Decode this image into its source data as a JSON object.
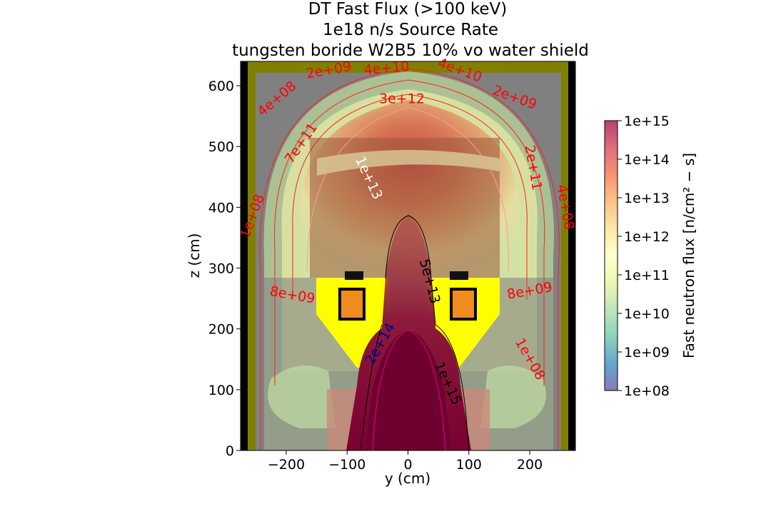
{
  "chart_data": {
    "type": "heatmap",
    "title_lines": [
      "DT Fast Flux (>100 keV)",
      "1e18 n/s Source Rate",
      "tungsten boride W2B5 10% vo water shield"
    ],
    "xlabel": "y (cm)",
    "ylabel": "z (cm)",
    "xlim": [
      -275,
      275
    ],
    "ylim": [
      0,
      640
    ],
    "xticks": [
      -200,
      -100,
      0,
      100,
      200
    ],
    "xtick_labels": [
      "−200",
      "−100",
      "0",
      "100",
      "200"
    ],
    "yticks": [
      0,
      100,
      200,
      300,
      400,
      500,
      600
    ],
    "ytick_labels": [
      "0",
      "100",
      "200",
      "300",
      "400",
      "500",
      "600"
    ],
    "colorbar": {
      "label": "Fast neutron flux [n/cm² − s]",
      "scale": "log",
      "range": [
        100000000.0,
        1000000000000000.0
      ],
      "tick_labels": [
        "1e+08",
        "1e+09",
        "1e+10",
        "1e+11",
        "1e+12",
        "1e+13",
        "1e+14",
        "1e+15"
      ],
      "colors": [
        "#5e4fa2",
        "#3288bd",
        "#66c2a5",
        "#abdda4",
        "#e6f598",
        "#ffffbf",
        "#fee08b",
        "#fdae61",
        "#f46d43",
        "#d53e4f",
        "#9e0142"
      ]
    },
    "contour_labels": [
      {
        "text": "1e+08",
        "y": -255,
        "z": 385,
        "color": "#ff0000"
      },
      {
        "text": "4e+08",
        "y": -215,
        "z": 578,
        "color": "#ff0000"
      },
      {
        "text": "2e+09",
        "y": -130,
        "z": 625,
        "color": "#ff0000"
      },
      {
        "text": "4e+10",
        "y": -35,
        "z": 628,
        "color": "#ff0000"
      },
      {
        "text": "4e+10",
        "y": 85,
        "z": 625,
        "color": "#ff0000"
      },
      {
        "text": "3e+12",
        "y": -10,
        "z": 578,
        "color": "#ff0000"
      },
      {
        "text": "2e+09",
        "y": 175,
        "z": 580,
        "color": "#ff0000"
      },
      {
        "text": "7e+11",
        "y": -175,
        "z": 505,
        "color": "#ff0000"
      },
      {
        "text": "1e+13",
        "y": -65,
        "z": 448,
        "color": "#ffffff"
      },
      {
        "text": "2e+11",
        "y": 205,
        "z": 465,
        "color": "#ff0000"
      },
      {
        "text": "4e+08",
        "y": 258,
        "z": 400,
        "color": "#ff0000"
      },
      {
        "text": "5e+13",
        "y": 35,
        "z": 278,
        "color": "#000000"
      },
      {
        "text": "8e+09",
        "y": -190,
        "z": 255,
        "color": "#ff0000"
      },
      {
        "text": "8e+09",
        "y": 200,
        "z": 262,
        "color": "#ff0000"
      },
      {
        "text": "2e+14",
        "y": -45,
        "z": 175,
        "color": "#00008b"
      },
      {
        "text": "1e+08",
        "y": 200,
        "z": 150,
        "color": "#ff0000"
      },
      {
        "text": "1e+15",
        "y": 65,
        "z": 110,
        "color": "#000000"
      }
    ]
  }
}
